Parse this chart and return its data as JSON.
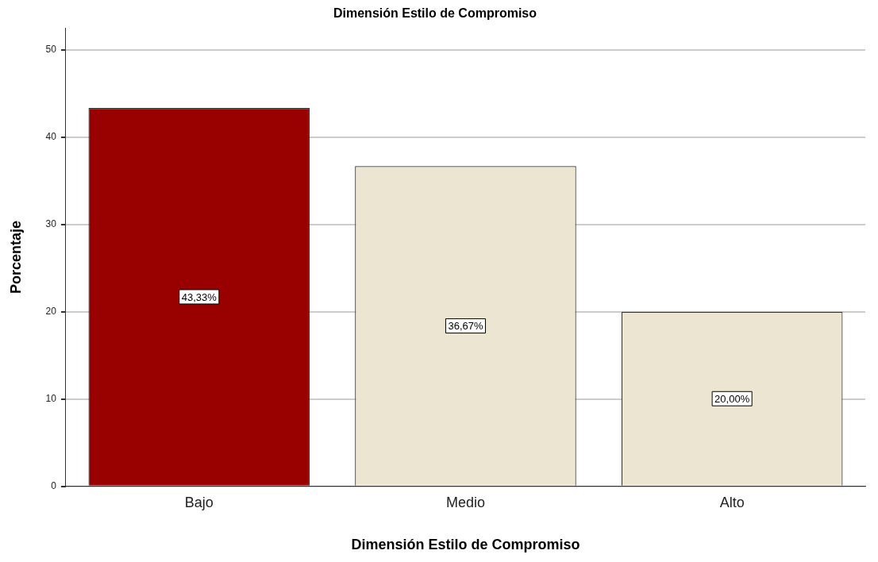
{
  "chart_data": {
    "type": "bar",
    "title": "Dimensión Estilo de Compromiso",
    "xlabel": "Dimensión Estilo de Compromiso",
    "ylabel": "Porcentaje",
    "categories": [
      "Bajo",
      "Medio",
      "Alto"
    ],
    "values": [
      43.33,
      36.67,
      20.0
    ],
    "colors": [
      "#990000",
      "#ebe5d1",
      "#ebe5d1"
    ],
    "value_labels": [
      "43,33%",
      "36,67%",
      "20,00%"
    ],
    "ylim": [
      0,
      52.5
    ],
    "yticks": [
      0,
      10,
      20,
      30,
      40,
      50
    ],
    "grid": "y",
    "legend": false
  }
}
